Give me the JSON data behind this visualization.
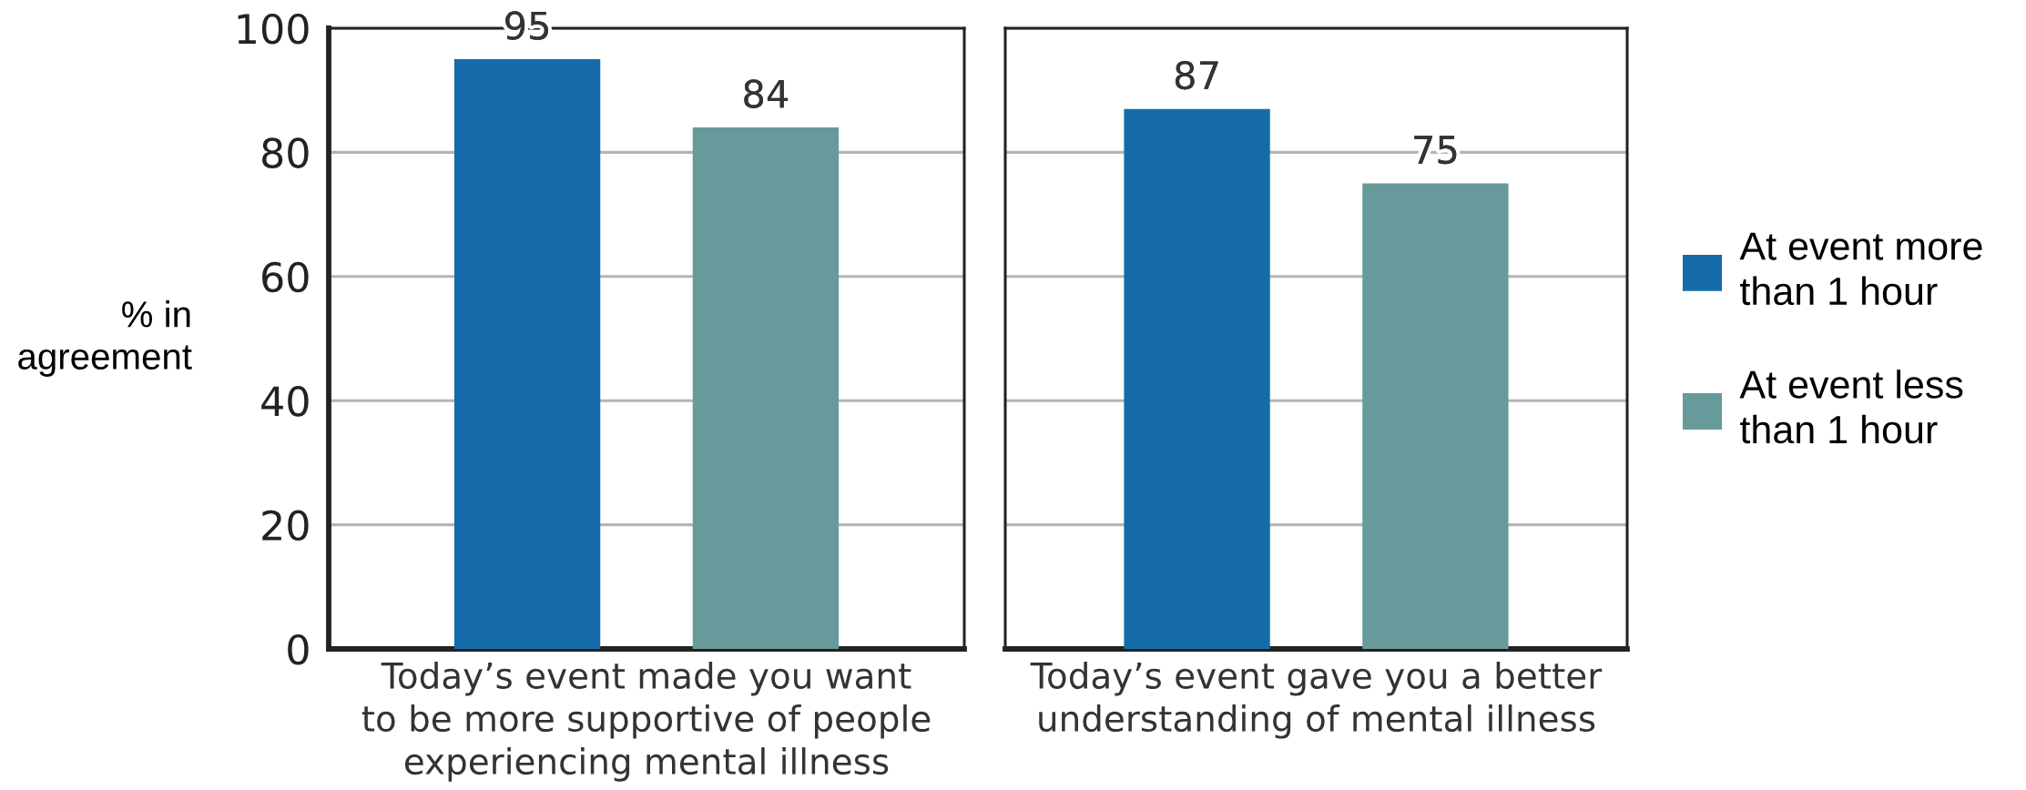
{
  "chart_data": {
    "type": "bar",
    "ylabel": "% in\nagreement",
    "categories": [
      "Today’s event made you want\nto be more supportive of people\nexperiencing mental illness",
      "Today’s event gave you a better\nunderstanding of mental illness"
    ],
    "series": [
      {
        "name": "At event more\nthan 1 hour",
        "color": "#156ba9",
        "values": [
          95,
          87
        ]
      },
      {
        "name": "At event less\nthan 1 hour",
        "color": "#679a9a",
        "values": [
          84,
          75
        ]
      }
    ],
    "ylim": [
      0,
      100
    ],
    "yticks": [
      0,
      20,
      40,
      60,
      80,
      100
    ],
    "grid": "y",
    "data_labels": true,
    "legend": "right"
  }
}
